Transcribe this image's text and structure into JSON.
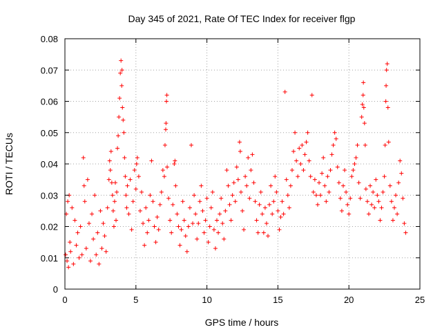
{
  "chart_data": {
    "type": "scatter",
    "title": "Day 345 of 2021, Rate Of TEC Index for receiver flgp",
    "xlabel": "GPS time / hours",
    "ylabel": "ROTI / TECUs",
    "xlim": [
      0,
      25
    ],
    "ylim": [
      0,
      0.08
    ],
    "x_ticks": [
      0,
      5,
      10,
      15,
      20,
      25
    ],
    "y_ticks": [
      0,
      0.01,
      0.02,
      0.03,
      0.04,
      0.05,
      0.06,
      0.07,
      0.08
    ],
    "x_tick_labels": [
      "0",
      "5",
      "10",
      "15",
      "20",
      "25"
    ],
    "y_tick_labels": [
      "0",
      "0.01",
      "0.02",
      "0.03",
      "0.04",
      "0.05",
      "0.06",
      "0.07",
      "0.08"
    ],
    "grid": true,
    "marker": "+",
    "color": "#ff0000",
    "series": [
      {
        "name": "ROTI",
        "points": [
          [
            0.05,
            0.011
          ],
          [
            0.1,
            0.024
          ],
          [
            0.15,
            0.009
          ],
          [
            0.2,
            0.028
          ],
          [
            0.25,
            0.007
          ],
          [
            0.3,
            0.03
          ],
          [
            0.35,
            0.015
          ],
          [
            0.4,
            0.012
          ],
          [
            0.5,
            0.026
          ],
          [
            0.6,
            0.008
          ],
          [
            0.7,
            0.022
          ],
          [
            0.8,
            0.014
          ],
          [
            0.9,
            0.018
          ],
          [
            1.0,
            0.01
          ],
          [
            1.1,
            0.02
          ],
          [
            1.2,
            0.011
          ],
          [
            1.3,
            0.042
          ],
          [
            1.35,
            0.033
          ],
          [
            1.4,
            0.028
          ],
          [
            1.5,
            0.013
          ],
          [
            1.6,
            0.035
          ],
          [
            1.7,
            0.021
          ],
          [
            1.8,
            0.009
          ],
          [
            1.9,
            0.024
          ],
          [
            2.0,
            0.016
          ],
          [
            2.1,
            0.03
          ],
          [
            2.2,
            0.011
          ],
          [
            2.3,
            0.018
          ],
          [
            2.4,
            0.008
          ],
          [
            2.5,
            0.025
          ],
          [
            2.6,
            0.013
          ],
          [
            2.7,
            0.021
          ],
          [
            2.8,
            0.017
          ],
          [
            2.9,
            0.012
          ],
          [
            3.0,
            0.026
          ],
          [
            3.1,
            0.035
          ],
          [
            3.15,
            0.041
          ],
          [
            3.2,
            0.038
          ],
          [
            3.25,
            0.044
          ],
          [
            3.3,
            0.034
          ],
          [
            3.35,
            0.03
          ],
          [
            3.4,
            0.025
          ],
          [
            3.45,
            0.02
          ],
          [
            3.5,
            0.028
          ],
          [
            3.55,
            0.034
          ],
          [
            3.6,
            0.022
          ],
          [
            3.65,
            0.031
          ],
          [
            3.7,
            0.045
          ],
          [
            3.75,
            0.049
          ],
          [
            3.8,
            0.055
          ],
          [
            3.85,
            0.061
          ],
          [
            3.9,
            0.069
          ],
          [
            3.95,
            0.073
          ],
          [
            4.0,
            0.065
          ],
          [
            4.02,
            0.07
          ],
          [
            4.05,
            0.058
          ],
          [
            4.1,
            0.054
          ],
          [
            4.15,
            0.05
          ],
          [
            4.2,
            0.042
          ],
          [
            4.25,
            0.036
          ],
          [
            4.3,
            0.03
          ],
          [
            4.35,
            0.026
          ],
          [
            4.4,
            0.033
          ],
          [
            4.5,
            0.024
          ],
          [
            4.6,
            0.035
          ],
          [
            4.7,
            0.019
          ],
          [
            4.8,
            0.028
          ],
          [
            4.9,
            0.038
          ],
          [
            5.0,
            0.032
          ],
          [
            5.05,
            0.04
          ],
          [
            5.1,
            0.042
          ],
          [
            5.2,
            0.036
          ],
          [
            5.3,
            0.025
          ],
          [
            5.4,
            0.031
          ],
          [
            5.5,
            0.021
          ],
          [
            5.6,
            0.014
          ],
          [
            5.7,
            0.026
          ],
          [
            5.8,
            0.018
          ],
          [
            5.9,
            0.022
          ],
          [
            6.0,
            0.03
          ],
          [
            6.1,
            0.041
          ],
          [
            6.2,
            0.028
          ],
          [
            6.3,
            0.02
          ],
          [
            6.4,
            0.015
          ],
          [
            6.5,
            0.023
          ],
          [
            6.6,
            0.019
          ],
          [
            6.7,
            0.027
          ],
          [
            6.8,
            0.031
          ],
          [
            6.9,
            0.038
          ],
          [
            7.0,
            0.036
          ],
          [
            7.05,
            0.046
          ],
          [
            7.1,
            0.051
          ],
          [
            7.12,
            0.053
          ],
          [
            7.15,
            0.06
          ],
          [
            7.18,
            0.062
          ],
          [
            7.2,
            0.039
          ],
          [
            7.3,
            0.029
          ],
          [
            7.4,
            0.022
          ],
          [
            7.5,
            0.018
          ],
          [
            7.6,
            0.027
          ],
          [
            7.7,
            0.04
          ],
          [
            7.75,
            0.041
          ],
          [
            7.8,
            0.033
          ],
          [
            7.9,
            0.024
          ],
          [
            8.0,
            0.02
          ],
          [
            8.1,
            0.014
          ],
          [
            8.2,
            0.019
          ],
          [
            8.3,
            0.028
          ],
          [
            8.4,
            0.022
          ],
          [
            8.5,
            0.017
          ],
          [
            8.6,
            0.012
          ],
          [
            8.7,
            0.02
          ],
          [
            8.8,
            0.026
          ],
          [
            8.9,
            0.046
          ],
          [
            9.0,
            0.021
          ],
          [
            9.1,
            0.03
          ],
          [
            9.2,
            0.024
          ],
          [
            9.3,
            0.016
          ],
          [
            9.4,
            0.021
          ],
          [
            9.5,
            0.028
          ],
          [
            9.6,
            0.033
          ],
          [
            9.7,
            0.025
          ],
          [
            9.8,
            0.018
          ],
          [
            9.9,
            0.022
          ],
          [
            10.0,
            0.029
          ],
          [
            10.1,
            0.015
          ],
          [
            10.2,
            0.02
          ],
          [
            10.3,
            0.026
          ],
          [
            10.4,
            0.031
          ],
          [
            10.5,
            0.019
          ],
          [
            10.6,
            0.013
          ],
          [
            10.7,
            0.022
          ],
          [
            10.8,
            0.018
          ],
          [
            10.9,
            0.024
          ],
          [
            11.0,
            0.029
          ],
          [
            11.1,
            0.021
          ],
          [
            11.2,
            0.016
          ],
          [
            11.3,
            0.025
          ],
          [
            11.4,
            0.038
          ],
          [
            11.5,
            0.033
          ],
          [
            11.6,
            0.027
          ],
          [
            11.7,
            0.022
          ],
          [
            11.8,
            0.03
          ],
          [
            11.9,
            0.034
          ],
          [
            12.0,
            0.028
          ],
          [
            12.1,
            0.039
          ],
          [
            12.2,
            0.035
          ],
          [
            12.3,
            0.047
          ],
          [
            12.35,
            0.044
          ],
          [
            12.4,
            0.031
          ],
          [
            12.5,
            0.025
          ],
          [
            12.6,
            0.019
          ],
          [
            12.7,
            0.036
          ],
          [
            12.8,
            0.033
          ],
          [
            12.9,
            0.042
          ],
          [
            13.0,
            0.029
          ],
          [
            13.1,
            0.038
          ],
          [
            13.2,
            0.043
          ],
          [
            13.3,
            0.034
          ],
          [
            13.4,
            0.028
          ],
          [
            13.5,
            0.022
          ],
          [
            13.6,
            0.018
          ],
          [
            13.7,
            0.027
          ],
          [
            13.8,
            0.031
          ],
          [
            13.9,
            0.024
          ],
          [
            14.0,
            0.018
          ],
          [
            14.1,
            0.026
          ],
          [
            14.2,
            0.021
          ],
          [
            14.3,
            0.017
          ],
          [
            14.4,
            0.027
          ],
          [
            14.5,
            0.033
          ],
          [
            14.6,
            0.024
          ],
          [
            14.7,
            0.028
          ],
          [
            14.8,
            0.036
          ],
          [
            14.9,
            0.031
          ],
          [
            15.0,
            0.025
          ],
          [
            15.1,
            0.019
          ],
          [
            15.2,
            0.023
          ],
          [
            15.3,
            0.028
          ],
          [
            15.4,
            0.024
          ],
          [
            15.5,
            0.063
          ],
          [
            15.6,
            0.035
          ],
          [
            15.7,
            0.03
          ],
          [
            15.8,
            0.026
          ],
          [
            15.9,
            0.033
          ],
          [
            16.0,
            0.038
          ],
          [
            16.1,
            0.044
          ],
          [
            16.2,
            0.05
          ],
          [
            16.3,
            0.041
          ],
          [
            16.4,
            0.036
          ],
          [
            16.5,
            0.045
          ],
          [
            16.6,
            0.04
          ],
          [
            16.7,
            0.046
          ],
          [
            16.8,
            0.038
          ],
          [
            16.9,
            0.043
          ],
          [
            17.0,
            0.047
          ],
          [
            17.1,
            0.05
          ],
          [
            17.2,
            0.041
          ],
          [
            17.3,
            0.036
          ],
          [
            17.4,
            0.062
          ],
          [
            17.5,
            0.031
          ],
          [
            17.6,
            0.035
          ],
          [
            17.7,
            0.03
          ],
          [
            17.8,
            0.027
          ],
          [
            17.9,
            0.034
          ],
          [
            18.0,
            0.03
          ],
          [
            18.1,
            0.037
          ],
          [
            18.2,
            0.042
          ],
          [
            18.3,
            0.033
          ],
          [
            18.4,
            0.028
          ],
          [
            18.5,
            0.036
          ],
          [
            18.6,
            0.031
          ],
          [
            18.7,
            0.038
          ],
          [
            18.8,
            0.043
          ],
          [
            18.9,
            0.046
          ],
          [
            19.0,
            0.05
          ],
          [
            19.1,
            0.048
          ],
          [
            19.2,
            0.039
          ],
          [
            19.3,
            0.034
          ],
          [
            19.4,
            0.029
          ],
          [
            19.5,
            0.025
          ],
          [
            19.6,
            0.033
          ],
          [
            19.7,
            0.038
          ],
          [
            19.8,
            0.031
          ],
          [
            19.9,
            0.027
          ],
          [
            20.0,
            0.024
          ],
          [
            20.1,
            0.029
          ],
          [
            20.2,
            0.036
          ],
          [
            20.3,
            0.038
          ],
          [
            20.4,
            0.04
          ],
          [
            20.5,
            0.042
          ],
          [
            20.6,
            0.046
          ],
          [
            20.7,
            0.034
          ],
          [
            20.8,
            0.029
          ],
          [
            20.9,
            0.055
          ],
          [
            20.95,
            0.059
          ],
          [
            21.0,
            0.062
          ],
          [
            21.02,
            0.066
          ],
          [
            21.05,
            0.058
          ],
          [
            21.1,
            0.053
          ],
          [
            21.15,
            0.046
          ],
          [
            21.2,
            0.032
          ],
          [
            21.3,
            0.028
          ],
          [
            21.4,
            0.024
          ],
          [
            21.5,
            0.033
          ],
          [
            21.6,
            0.027
          ],
          [
            21.7,
            0.031
          ],
          [
            21.8,
            0.026
          ],
          [
            21.9,
            0.035
          ],
          [
            22.0,
            0.03
          ],
          [
            22.1,
            0.028
          ],
          [
            22.2,
            0.022
          ],
          [
            22.3,
            0.026
          ],
          [
            22.4,
            0.031
          ],
          [
            22.5,
            0.036
          ],
          [
            22.55,
            0.046
          ],
          [
            22.6,
            0.06
          ],
          [
            22.62,
            0.065
          ],
          [
            22.65,
            0.07
          ],
          [
            22.7,
            0.072
          ],
          [
            22.75,
            0.058
          ],
          [
            22.8,
            0.047
          ],
          [
            22.9,
            0.033
          ],
          [
            23.0,
            0.028
          ],
          [
            23.1,
            0.022
          ],
          [
            23.2,
            0.026
          ],
          [
            23.3,
            0.03
          ],
          [
            23.4,
            0.024
          ],
          [
            23.5,
            0.034
          ],
          [
            23.6,
            0.041
          ],
          [
            23.7,
            0.037
          ],
          [
            23.8,
            0.029
          ],
          [
            23.9,
            0.021
          ],
          [
            24.0,
            0.018
          ]
        ]
      }
    ]
  }
}
